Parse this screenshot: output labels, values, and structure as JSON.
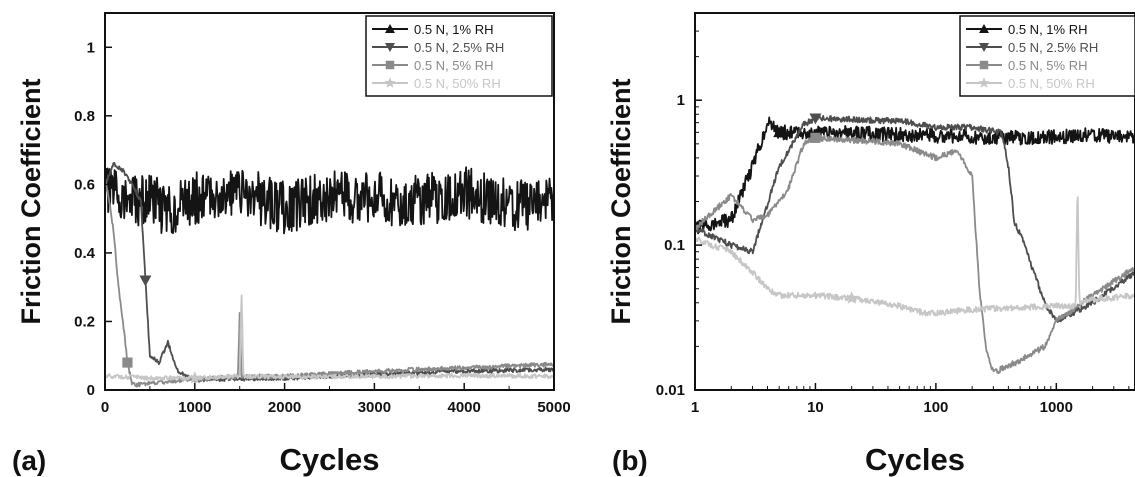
{
  "panels": [
    {
      "label": "(a)"
    },
    {
      "label": "(b)"
    }
  ],
  "series_colors": [
    "#141414",
    "#4e4e4e",
    "#8a8a8a",
    "#c6c6c6"
  ],
  "chart_data": [
    {
      "type": "line",
      "xlabel": "Cycles",
      "ylabel": "Friction Coefficient",
      "xlim": [
        0,
        5000
      ],
      "ylim": [
        0,
        1.1
      ],
      "xscale": "linear",
      "yscale": "linear",
      "xticks": [
        "0",
        "1000",
        "2000",
        "3000",
        "4000",
        "5000"
      ],
      "yticks": [
        "0",
        "0.2",
        "0.4",
        "0.6",
        "0.8",
        "1"
      ],
      "legend_position": "top-right",
      "grid": false,
      "series": [
        {
          "name": "0.5 N, 1% RH",
          "marker": "triangle-up",
          "x": [
            0,
            50,
            100,
            200,
            300,
            400,
            500,
            700,
            1000,
            1500,
            2000,
            2500,
            3000,
            3500,
            4000,
            4500,
            5000
          ],
          "y": [
            0.6,
            0.57,
            0.58,
            0.56,
            0.55,
            0.55,
            0.56,
            0.52,
            0.56,
            0.58,
            0.53,
            0.57,
            0.56,
            0.55,
            0.58,
            0.54,
            0.55
          ]
        },
        {
          "name": "0.5 N, 2.5% RH",
          "marker": "triangle-down",
          "x": [
            0,
            100,
            200,
            300,
            400,
            450,
            500,
            600,
            700,
            800,
            900,
            1000,
            2000,
            3000,
            4000,
            5000
          ],
          "y": [
            0.6,
            0.66,
            0.64,
            0.6,
            0.55,
            0.32,
            0.1,
            0.08,
            0.14,
            0.06,
            0.04,
            0.03,
            0.035,
            0.045,
            0.055,
            0.06
          ]
        },
        {
          "name": "0.5 N, 5% RH",
          "marker": "square",
          "x": [
            0,
            50,
            100,
            150,
            200,
            250,
            300,
            350,
            500,
            1000,
            1480,
            1500,
            1520,
            2000,
            3000,
            4000,
            5000
          ],
          "y": [
            0.62,
            0.55,
            0.45,
            0.3,
            0.2,
            0.08,
            0.02,
            0.015,
            0.02,
            0.03,
            0.04,
            0.23,
            0.04,
            0.04,
            0.055,
            0.065,
            0.075
          ]
        },
        {
          "name": "0.5 N, 50% RH",
          "marker": "star",
          "x": [
            0,
            100,
            500,
            1000,
            1500,
            1520,
            1540,
            2000,
            3000,
            4000,
            5000
          ],
          "y": [
            0.04,
            0.04,
            0.035,
            0.035,
            0.04,
            0.3,
            0.04,
            0.038,
            0.04,
            0.042,
            0.04
          ]
        }
      ]
    },
    {
      "type": "line",
      "xlabel": "Cycles",
      "ylabel": "Friction Coefficient",
      "xlim": [
        1,
        4500
      ],
      "ylim": [
        0.01,
        4
      ],
      "xscale": "log",
      "yscale": "log",
      "xticks": [
        "1",
        "10",
        "100",
        "1000"
      ],
      "yticks": [
        "0.01",
        "0.1",
        "1"
      ],
      "legend_position": "top-right",
      "grid": false,
      "series": [
        {
          "name": "0.5 N, 1% RH",
          "marker": "triangle-up",
          "x": [
            1,
            2,
            3,
            4,
            5,
            10,
            50,
            100,
            200,
            400,
            1000,
            2000,
            4500
          ],
          "y": [
            0.13,
            0.15,
            0.35,
            0.7,
            0.6,
            0.6,
            0.58,
            0.57,
            0.56,
            0.55,
            0.56,
            0.58,
            0.55
          ]
        },
        {
          "name": "0.5 N, 2.5% RH",
          "marker": "triangle-down",
          "x": [
            1,
            2,
            3,
            5,
            8,
            10,
            50,
            100,
            200,
            350,
            400,
            450,
            500,
            800,
            1000,
            2000,
            4500
          ],
          "y": [
            0.13,
            0.1,
            0.09,
            0.35,
            0.68,
            0.75,
            0.72,
            0.65,
            0.65,
            0.6,
            0.35,
            0.14,
            0.12,
            0.04,
            0.03,
            0.04,
            0.065
          ]
        },
        {
          "name": "0.5 N, 5% RH",
          "marker": "square",
          "x": [
            1,
            2,
            3,
            4,
            5,
            6,
            8,
            10,
            30,
            50,
            100,
            150,
            200,
            230,
            260,
            300,
            350,
            500,
            800,
            1000,
            2000,
            4500
          ],
          "y": [
            0.13,
            0.22,
            0.15,
            0.16,
            0.2,
            0.25,
            0.5,
            0.55,
            0.52,
            0.5,
            0.4,
            0.45,
            0.3,
            0.05,
            0.02,
            0.013,
            0.014,
            0.016,
            0.02,
            0.03,
            0.045,
            0.07
          ]
        },
        {
          "name": "0.5 N, 50% RH",
          "marker": "star",
          "x": [
            1,
            2,
            3,
            4,
            5,
            10,
            20,
            50,
            80,
            100,
            200,
            500,
            1000,
            1450,
            1500,
            1550,
            2000,
            4500
          ],
          "y": [
            0.11,
            0.09,
            0.065,
            0.05,
            0.045,
            0.045,
            0.043,
            0.038,
            0.034,
            0.034,
            0.036,
            0.037,
            0.038,
            0.038,
            0.3,
            0.04,
            0.042,
            0.045
          ]
        }
      ]
    }
  ]
}
